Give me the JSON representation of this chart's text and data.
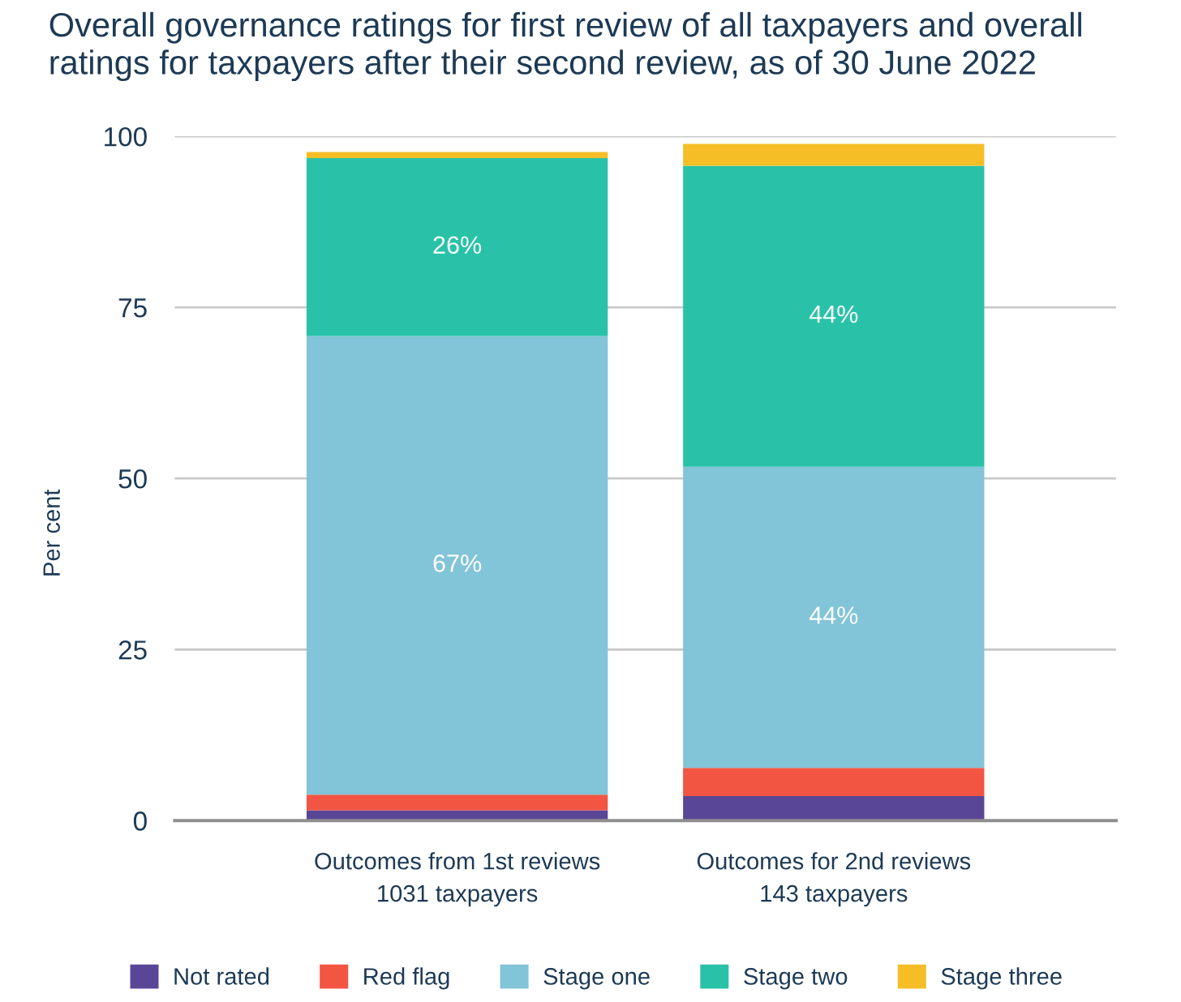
{
  "chart_data": {
    "type": "bar",
    "stacked": true,
    "title": "Overall governance ratings for first review of all taxpayers and overall\nratings for taxpayers after their second review, as of 30 June 2022",
    "ylabel": "Per cent",
    "categories": [
      "Outcomes from 1st reviews\n1031 taxpayers",
      "Outcomes for 2nd reviews\n143 taxpayers"
    ],
    "series": [
      {
        "name": "Not rated",
        "color": "#5a4696",
        "values": [
          1.5,
          3.6
        ]
      },
      {
        "name": "Red flag",
        "color": "#f25542",
        "values": [
          2.3,
          4.1
        ]
      },
      {
        "name": "Stage one",
        "color": "#82c4d8",
        "values": [
          67,
          44
        ],
        "value_labels": [
          "67%",
          "44%"
        ]
      },
      {
        "name": "Stage two",
        "color": "#29c2a8",
        "values": [
          26,
          44
        ],
        "value_labels": [
          "26%",
          "44%"
        ]
      },
      {
        "name": "Stage three",
        "color": "#f6be26",
        "values": [
          0.9,
          3.2
        ]
      }
    ],
    "ylim": [
      0,
      100
    ],
    "yticks": [
      0,
      25,
      50,
      75,
      100
    ],
    "grid": "y",
    "legend": "bottom"
  }
}
